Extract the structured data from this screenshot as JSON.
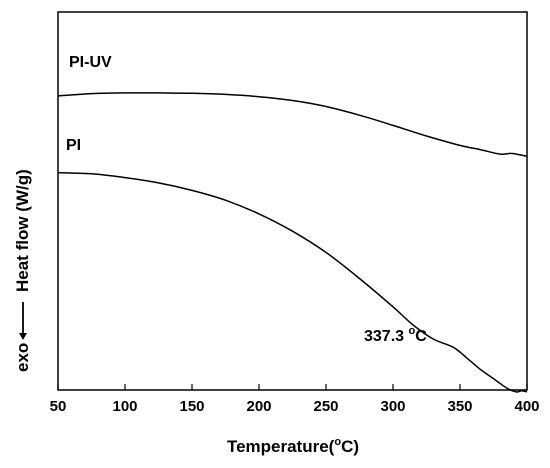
{
  "chart_data": {
    "type": "line",
    "xlabel": {
      "main": "Temperature(",
      "sup": "o",
      "unit": "C)"
    },
    "ylabel": {
      "main": "Heat flow (W/g)",
      "prefix": "exo"
    },
    "xlim": [
      50,
      400
    ],
    "xticks": [
      50,
      100,
      150,
      200,
      250,
      300,
      350,
      400
    ],
    "yticks_shown": false,
    "grid": false,
    "series": [
      {
        "name": "PI-UV",
        "x": [
          50,
          75,
          100,
          125,
          150,
          175,
          200,
          225,
          250,
          275,
          300,
          325,
          350,
          365,
          380,
          388,
          395,
          400
        ],
        "y": [
          0.778,
          0.784,
          0.786,
          0.786,
          0.785,
          0.782,
          0.776,
          0.766,
          0.75,
          0.727,
          0.7,
          0.672,
          0.647,
          0.636,
          0.624,
          0.626,
          0.622,
          0.618
        ]
      },
      {
        "name": "PI",
        "x": [
          50,
          75,
          100,
          125,
          150,
          175,
          200,
          225,
          250,
          275,
          300,
          315,
          330,
          345,
          355,
          365,
          375,
          385,
          392,
          396,
          400
        ],
        "y": [
          0.575,
          0.572,
          0.562,
          0.548,
          0.528,
          0.502,
          0.466,
          0.42,
          0.364,
          0.295,
          0.22,
          0.172,
          0.135,
          0.113,
          0.085,
          0.055,
          0.03,
          0.005,
          -0.005,
          -0.002,
          -0.005
        ]
      }
    ],
    "annotations": [
      {
        "text": "337.3 ",
        "sup": "o",
        "unit": "C",
        "x": 337.3
      }
    ]
  }
}
